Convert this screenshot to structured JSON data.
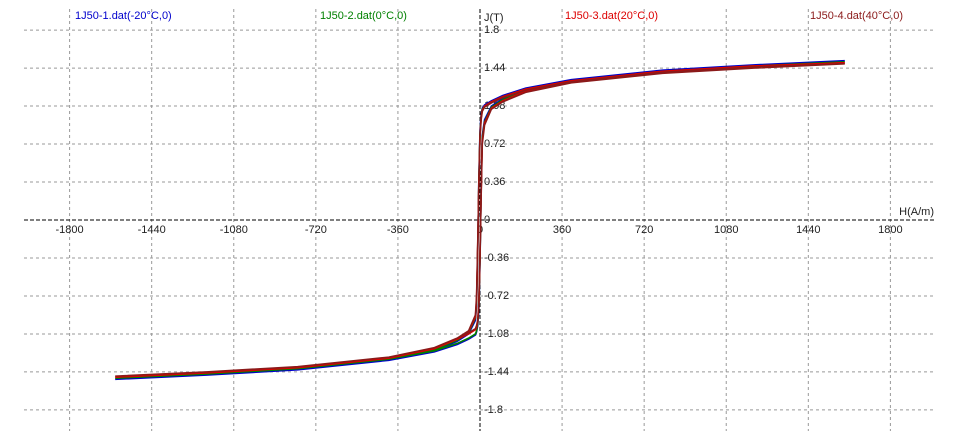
{
  "chart_data": {
    "type": "line",
    "xlabel": "H(A/m)",
    "ylabel": "J(T)",
    "x": [
      1600,
      1200,
      800,
      400,
      200,
      100,
      50,
      20,
      10,
      5,
      0,
      -5,
      -10,
      -15,
      -20,
      -50,
      -100,
      -200,
      -400,
      -800,
      -1200,
      -1600,
      -1200,
      -800,
      -400,
      -200,
      -100,
      -50,
      -20,
      -15,
      -10,
      -5,
      0,
      5,
      10,
      20,
      50,
      100,
      200,
      400,
      800,
      1200,
      1600
    ],
    "series": [
      {
        "name": "1J50-1.dat(-20°C,0)",
        "color": "#0000cc",
        "values": [
          1.51,
          1.47,
          1.42,
          1.33,
          1.25,
          1.18,
          1.13,
          1.09,
          1.06,
          1.0,
          0.85,
          0.4,
          -0.3,
          -0.8,
          -0.95,
          -1.08,
          -1.15,
          -1.24,
          -1.33,
          -1.42,
          -1.47,
          -1.51,
          -1.47,
          -1.42,
          -1.33,
          -1.25,
          -1.18,
          -1.13,
          -1.09,
          -1.06,
          -1.0,
          -0.85,
          -0.4,
          0.3,
          0.8,
          0.95,
          1.08,
          1.15,
          1.24,
          1.33,
          1.42,
          1.47,
          1.51
        ]
      },
      {
        "name": "1J50-2.dat(0°C,0)",
        "color": "#008000",
        "values": [
          1.5,
          1.46,
          1.41,
          1.32,
          1.24,
          1.17,
          1.12,
          1.08,
          1.05,
          0.98,
          0.82,
          0.38,
          -0.28,
          -0.78,
          -0.93,
          -1.07,
          -1.14,
          -1.23,
          -1.32,
          -1.41,
          -1.46,
          -1.5,
          -1.46,
          -1.41,
          -1.32,
          -1.24,
          -1.17,
          -1.12,
          -1.08,
          -1.05,
          -0.98,
          -0.82,
          -0.38,
          0.28,
          0.78,
          0.93,
          1.07,
          1.14,
          1.23,
          1.32,
          1.41,
          1.46,
          1.5
        ]
      },
      {
        "name": "1J50-3.dat(20°C,0)",
        "color": "#dd0000",
        "values": [
          1.49,
          1.46,
          1.41,
          1.32,
          1.24,
          1.17,
          1.12,
          1.08,
          1.04,
          0.97,
          0.8,
          0.35,
          -0.25,
          -0.75,
          -0.92,
          -1.06,
          -1.13,
          -1.22,
          -1.31,
          -1.4,
          -1.45,
          -1.49,
          -1.45,
          -1.4,
          -1.31,
          -1.22,
          -1.13,
          -1.08,
          -1.04,
          -1.02,
          -0.96,
          -0.8,
          -0.35,
          0.25,
          0.75,
          0.92,
          1.06,
          1.13,
          1.22,
          1.31,
          1.4,
          1.45,
          1.49
        ]
      },
      {
        "name": "1J50-4.dat(40°C,0)",
        "color": "#8b1a1a",
        "values": [
          1.48,
          1.45,
          1.4,
          1.31,
          1.23,
          1.16,
          1.11,
          1.07,
          1.03,
          0.95,
          0.78,
          0.32,
          -0.22,
          -0.72,
          -0.9,
          -1.05,
          -1.12,
          -1.21,
          -1.3,
          -1.39,
          -1.44,
          -1.48,
          -1.44,
          -1.39,
          -1.3,
          -1.21,
          -1.12,
          -1.07,
          -1.03,
          -1.0,
          -0.95,
          -0.78,
          -0.32,
          0.22,
          0.72,
          0.9,
          1.05,
          1.12,
          1.21,
          1.3,
          1.39,
          1.44,
          1.48
        ]
      }
    ],
    "xlim": [
      -2000,
      2000
    ],
    "ylim": [
      -2,
      2
    ],
    "xticks": [
      -1800,
      -1440,
      -1080,
      -720,
      -360,
      0,
      360,
      720,
      1080,
      1440,
      1800
    ],
    "yticks": [
      -1.8,
      -1.44,
      -1.08,
      -0.72,
      -0.36,
      0,
      0.36,
      0.72,
      1.08,
      1.44,
      1.8
    ],
    "grid": true
  }
}
